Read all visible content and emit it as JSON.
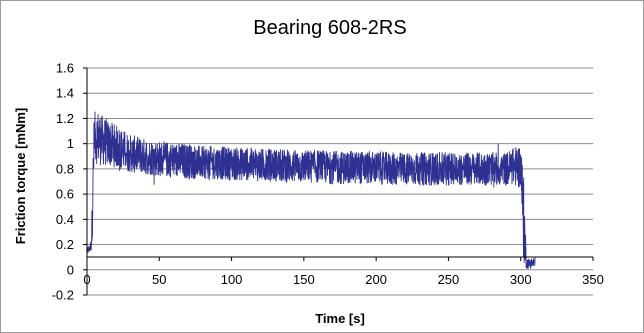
{
  "chart_data": {
    "type": "line",
    "title": "Bearing 608-2RS",
    "xlabel": "Time [s]",
    "ylabel": "Friction torque [mNm]",
    "xlim": [
      0,
      350
    ],
    "ylim": [
      -0.2,
      1.6
    ],
    "x_ticks": [
      "0",
      "50",
      "100",
      "150",
      "200",
      "250",
      "300",
      "350"
    ],
    "y_ticks": [
      "-0.2",
      "0",
      "0.2",
      "0.4",
      "0.6",
      "0.8",
      "1",
      "1.2",
      "1.4",
      "1.6"
    ],
    "grid": "horizontal",
    "legend": "none",
    "series": [
      {
        "color": "#2e3191",
        "x": [
          0,
          2,
          3,
          4,
          5,
          8,
          10,
          15,
          20,
          25,
          30,
          40,
          50,
          60,
          70,
          80,
          90,
          100,
          110,
          120,
          130,
          140,
          150,
          160,
          170,
          180,
          190,
          200,
          210,
          220,
          230,
          240,
          250,
          260,
          270,
          280,
          290,
          295,
          300,
          302,
          304,
          306,
          310
        ],
        "y": [
          0.15,
          0.17,
          0.2,
          0.6,
          1.05,
          1.05,
          1.03,
          1.0,
          0.98,
          0.95,
          0.92,
          0.9,
          0.88,
          0.87,
          0.86,
          0.85,
          0.85,
          0.84,
          0.84,
          0.83,
          0.83,
          0.82,
          0.82,
          0.82,
          0.81,
          0.81,
          0.81,
          0.81,
          0.8,
          0.8,
          0.8,
          0.8,
          0.8,
          0.8,
          0.8,
          0.8,
          0.8,
          0.82,
          0.82,
          0.4,
          0.05,
          0.05,
          0.06
        ],
        "band": [
          0.03,
          0.03,
          0.05,
          0.3,
          0.2,
          0.22,
          0.2,
          0.18,
          0.17,
          0.16,
          0.15,
          0.14,
          0.14,
          0.14,
          0.14,
          0.13,
          0.13,
          0.13,
          0.13,
          0.13,
          0.13,
          0.13,
          0.13,
          0.13,
          0.13,
          0.13,
          0.13,
          0.13,
          0.13,
          0.13,
          0.13,
          0.13,
          0.13,
          0.13,
          0.13,
          0.13,
          0.13,
          0.15,
          0.18,
          0.35,
          0.04,
          0.04,
          0.04
        ]
      }
    ]
  }
}
